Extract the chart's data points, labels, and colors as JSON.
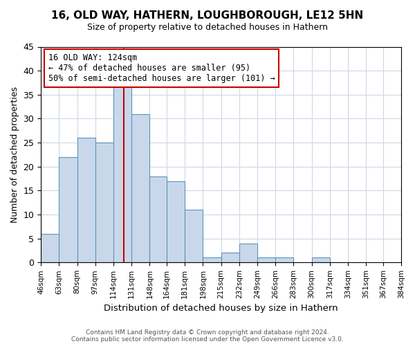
{
  "title": "16, OLD WAY, HATHERN, LOUGHBOROUGH, LE12 5HN",
  "subtitle": "Size of property relative to detached houses in Hathern",
  "xlabel": "Distribution of detached houses by size in Hathern",
  "ylabel": "Number of detached properties",
  "bar_edges": [
    46,
    63,
    80,
    97,
    114,
    131,
    148,
    164,
    181,
    198,
    215,
    232,
    249,
    266,
    283,
    300,
    317,
    334,
    351,
    367,
    384
  ],
  "bar_heights": [
    6,
    22,
    26,
    25,
    37,
    31,
    18,
    17,
    11,
    1,
    2,
    4,
    1,
    1,
    0,
    1,
    0,
    0,
    0,
    0
  ],
  "bar_color": "#c8d8ea",
  "bar_edge_color": "#6090bb",
  "vline_x": 124,
  "vline_color": "#cc0000",
  "ylim": [
    0,
    45
  ],
  "yticks": [
    0,
    5,
    10,
    15,
    20,
    25,
    30,
    35,
    40,
    45
  ],
  "tick_labels": [
    "46sqm",
    "63sqm",
    "80sqm",
    "97sqm",
    "114sqm",
    "131sqm",
    "148sqm",
    "164sqm",
    "181sqm",
    "198sqm",
    "215sqm",
    "232sqm",
    "249sqm",
    "266sqm",
    "283sqm",
    "300sqm",
    "317sqm",
    "334sqm",
    "351sqm",
    "367sqm",
    "384sqm"
  ],
  "annotation_title": "16 OLD WAY: 124sqm",
  "annotation_line1": "← 47% of detached houses are smaller (95)",
  "annotation_line2": "50% of semi-detached houses are larger (101) →",
  "annotation_box_color": "#ffffff",
  "annotation_box_edge": "#cc0000",
  "footer_line1": "Contains HM Land Registry data © Crown copyright and database right 2024.",
  "footer_line2": "Contains public sector information licensed under the Open Government Licence v3.0.",
  "background_color": "#ffffff",
  "grid_color": "#ccd8e8"
}
